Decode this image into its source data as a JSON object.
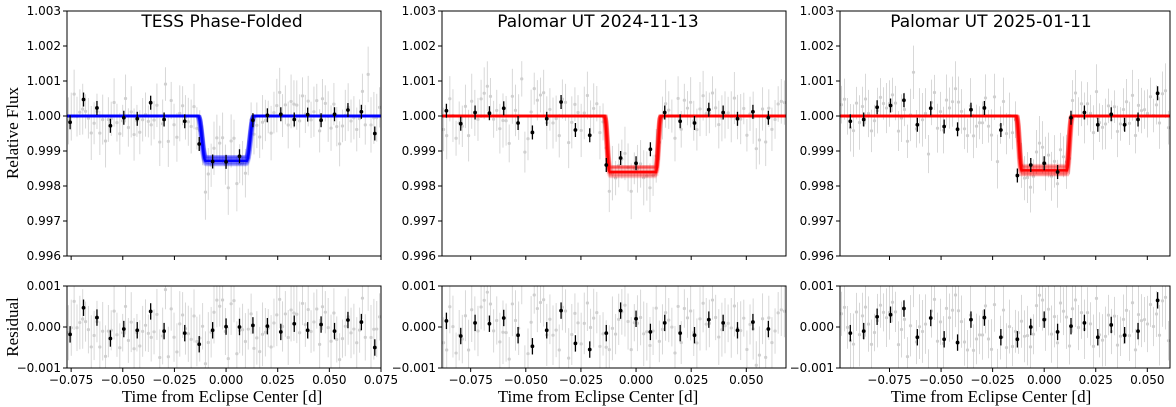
{
  "figure": {
    "ylabel_flux": "Relative Flux",
    "ylabel_residual": "Residual",
    "xlabel": "Time from Eclipse Center [d]"
  },
  "chart_data": [
    {
      "type": "scatter",
      "title": "TESS Phase-Folded",
      "xlim": [
        -0.077,
        0.075
      ],
      "xticks": [
        -0.075,
        -0.05,
        -0.025,
        0.0,
        0.025,
        0.05,
        0.075
      ],
      "xticklabels": [
        "−0.075",
        "−0.050",
        "−0.025",
        "0.000",
        "0.025",
        "0.050",
        "0.075"
      ],
      "flux_ylim": [
        0.996,
        1.003
      ],
      "flux_yticks": [
        0.996,
        0.997,
        0.998,
        0.999,
        1.0,
        1.001,
        1.002,
        1.003
      ],
      "flux_yticklabels": [
        "0.996",
        "0.997",
        "0.998",
        "0.999",
        "1.000",
        "1.001",
        "1.002",
        "1.003"
      ],
      "resid_ylim": [
        -0.001,
        0.001
      ],
      "resid_yticks": [
        -0.001,
        0.0,
        0.001
      ],
      "resid_yticklabels": [
        "−0.001",
        "0.000",
        "0.001"
      ],
      "model_color": "#0000ff",
      "model": {
        "t0": 0.0,
        "half_width": 0.0135,
        "ingress": 0.0035,
        "depth": 0.00128
      },
      "binned": [
        {
          "x": -0.0755,
          "y": 0.99982,
          "err": 0.0002
        },
        {
          "x": -0.069,
          "y": 1.00047,
          "err": 0.0002
        },
        {
          "x": -0.0625,
          "y": 1.00023,
          "err": 0.0002
        },
        {
          "x": -0.056,
          "y": 0.99972,
          "err": 0.0002
        },
        {
          "x": -0.0495,
          "y": 0.99995,
          "err": 0.0002
        },
        {
          "x": -0.043,
          "y": 0.99992,
          "err": 0.0002
        },
        {
          "x": -0.0365,
          "y": 1.00038,
          "err": 0.0002
        },
        {
          "x": -0.03,
          "y": 0.9999,
          "err": 0.0002
        },
        {
          "x": -0.02,
          "y": 0.99985,
          "err": 0.0002
        },
        {
          "x": -0.013,
          "y": 0.9992,
          "err": 0.0002
        },
        {
          "x": -0.0065,
          "y": 0.9987,
          "err": 0.0002
        },
        {
          "x": 0.0,
          "y": 0.99869,
          "err": 0.0002
        },
        {
          "x": 0.0065,
          "y": 0.99885,
          "err": 0.0002
        },
        {
          "x": 0.013,
          "y": 0.99988,
          "err": 0.0002
        },
        {
          "x": 0.02,
          "y": 1.00002,
          "err": 0.0002
        },
        {
          "x": 0.0265,
          "y": 1.00005,
          "err": 0.0002
        },
        {
          "x": 0.033,
          "y": 0.9999,
          "err": 0.0002
        },
        {
          "x": 0.0395,
          "y": 1.00004,
          "err": 0.0002
        },
        {
          "x": 0.046,
          "y": 0.99988,
          "err": 0.0002
        },
        {
          "x": 0.0525,
          "y": 1.00005,
          "err": 0.0002
        },
        {
          "x": 0.059,
          "y": 1.00017,
          "err": 0.0002
        },
        {
          "x": 0.0655,
          "y": 1.00012,
          "err": 0.0002
        },
        {
          "x": 0.072,
          "y": 0.9995,
          "err": 0.0002
        }
      ],
      "residuals": [
        {
          "x": -0.0755,
          "y": -0.00018,
          "err": 0.0002
        },
        {
          "x": -0.069,
          "y": 0.00047,
          "err": 0.0002
        },
        {
          "x": -0.0625,
          "y": 0.00023,
          "err": 0.0002
        },
        {
          "x": -0.056,
          "y": -0.00028,
          "err": 0.0002
        },
        {
          "x": -0.0495,
          "y": -5e-05,
          "err": 0.0002
        },
        {
          "x": -0.043,
          "y": -8e-05,
          "err": 0.0002
        },
        {
          "x": -0.0365,
          "y": 0.00038,
          "err": 0.0002
        },
        {
          "x": -0.03,
          "y": -0.0001,
          "err": 0.0002
        },
        {
          "x": -0.02,
          "y": -0.00015,
          "err": 0.0002
        },
        {
          "x": -0.013,
          "y": -0.00042,
          "err": 0.0002
        },
        {
          "x": -0.0065,
          "y": -8e-05,
          "err": 0.0002
        },
        {
          "x": 0.0,
          "y": 1e-05,
          "err": 0.0002
        },
        {
          "x": 0.0065,
          "y": 0.0,
          "err": 0.0002
        },
        {
          "x": 0.013,
          "y": 4e-05,
          "err": 0.0002
        },
        {
          "x": 0.02,
          "y": 2e-05,
          "err": 0.0002
        },
        {
          "x": 0.0265,
          "y": -0.00012,
          "err": 0.0002
        },
        {
          "x": 0.033,
          "y": 8e-05,
          "err": 0.0002
        },
        {
          "x": 0.0395,
          "y": -8e-05,
          "err": 0.0002
        },
        {
          "x": 0.046,
          "y": 6e-05,
          "err": 0.0002
        },
        {
          "x": 0.0525,
          "y": -0.0001,
          "err": 0.0002
        },
        {
          "x": 0.059,
          "y": 0.00017,
          "err": 0.0002
        },
        {
          "x": 0.0655,
          "y": 0.00012,
          "err": 0.0002
        },
        {
          "x": 0.072,
          "y": -0.0005,
          "err": 0.0002
        }
      ]
    },
    {
      "type": "scatter",
      "title": "Palomar UT 2024-11-13",
      "xlim": [
        -0.088,
        0.068
      ],
      "xticks": [
        -0.075,
        -0.05,
        -0.025,
        0.0,
        0.025,
        0.05
      ],
      "xticklabels": [
        "−0.075",
        "−0.050",
        "−0.025",
        "0.000",
        "0.025",
        "0.050"
      ],
      "flux_ylim": [
        0.996,
        1.003
      ],
      "flux_yticks": [
        0.996,
        0.997,
        0.998,
        0.999,
        1.0,
        1.001,
        1.002,
        1.003
      ],
      "flux_yticklabels": [
        "0.996",
        "0.997",
        "0.998",
        "0.999",
        "1.000",
        "1.001",
        "1.002",
        "1.003"
      ],
      "resid_ylim": [
        -0.001,
        0.001
      ],
      "resid_yticks": [
        -0.001,
        0.0,
        0.001
      ],
      "resid_yticklabels": [
        "−0.001",
        "0.000",
        "0.001"
      ],
      "model_color": "#ff0000",
      "model": {
        "t0": -0.0015,
        "half_width": 0.0128,
        "ingress": 0.0022,
        "depth": 0.0016
      },
      "binned": [
        {
          "x": -0.086,
          "y": 1.00015,
          "err": 0.0002
        },
        {
          "x": -0.0795,
          "y": 0.99978,
          "err": 0.0002
        },
        {
          "x": -0.073,
          "y": 1.0001,
          "err": 0.0002
        },
        {
          "x": -0.0665,
          "y": 1.00008,
          "err": 0.0002
        },
        {
          "x": -0.06,
          "y": 1.00022,
          "err": 0.0002
        },
        {
          "x": -0.0535,
          "y": 0.9998,
          "err": 0.0002
        },
        {
          "x": -0.047,
          "y": 0.99953,
          "err": 0.0002
        },
        {
          "x": -0.0405,
          "y": 0.99992,
          "err": 0.0002
        },
        {
          "x": -0.034,
          "y": 1.0004,
          "err": 0.0002
        },
        {
          "x": -0.0275,
          "y": 0.9996,
          "err": 0.0002
        },
        {
          "x": -0.021,
          "y": 0.99945,
          "err": 0.0002
        },
        {
          "x": -0.0135,
          "y": 0.9986,
          "err": 0.0002
        },
        {
          "x": -0.007,
          "y": 0.9988,
          "err": 0.0002
        },
        {
          "x": 0.0,
          "y": 0.99865,
          "err": 0.0002
        },
        {
          "x": 0.0065,
          "y": 0.99905,
          "err": 0.0002
        },
        {
          "x": 0.013,
          "y": 1.0001,
          "err": 0.0002
        },
        {
          "x": 0.02,
          "y": 0.99985,
          "err": 0.0002
        },
        {
          "x": 0.0265,
          "y": 0.9998,
          "err": 0.0002
        },
        {
          "x": 0.033,
          "y": 1.00018,
          "err": 0.0002
        },
        {
          "x": 0.0395,
          "y": 1.0001,
          "err": 0.0002
        },
        {
          "x": 0.046,
          "y": 0.99992,
          "err": 0.0002
        },
        {
          "x": 0.053,
          "y": 1.00012,
          "err": 0.0002
        },
        {
          "x": 0.06,
          "y": 0.99995,
          "err": 0.0002
        }
      ],
      "residuals": [
        {
          "x": -0.086,
          "y": 0.00015,
          "err": 0.0002
        },
        {
          "x": -0.0795,
          "y": -0.00022,
          "err": 0.0002
        },
        {
          "x": -0.073,
          "y": 0.0001,
          "err": 0.0002
        },
        {
          "x": -0.0665,
          "y": 8e-05,
          "err": 0.0002
        },
        {
          "x": -0.06,
          "y": 0.00022,
          "err": 0.0002
        },
        {
          "x": -0.0535,
          "y": -0.0002,
          "err": 0.0002
        },
        {
          "x": -0.047,
          "y": -0.00047,
          "err": 0.0002
        },
        {
          "x": -0.0405,
          "y": -8e-05,
          "err": 0.0002
        },
        {
          "x": -0.034,
          "y": 0.0004,
          "err": 0.0002
        },
        {
          "x": -0.0275,
          "y": -0.0004,
          "err": 0.0002
        },
        {
          "x": -0.021,
          "y": -0.00055,
          "err": 0.0002
        },
        {
          "x": -0.0135,
          "y": -0.00015,
          "err": 0.0002
        },
        {
          "x": -0.007,
          "y": 0.0004,
          "err": 0.0002
        },
        {
          "x": 0.0,
          "y": 0.0002,
          "err": 0.0002
        },
        {
          "x": 0.0065,
          "y": -0.00012,
          "err": 0.0002
        },
        {
          "x": 0.013,
          "y": 0.0001,
          "err": 0.0002
        },
        {
          "x": 0.02,
          "y": -0.00015,
          "err": 0.0002
        },
        {
          "x": 0.0265,
          "y": -0.0002,
          "err": 0.0002
        },
        {
          "x": 0.033,
          "y": 0.00018,
          "err": 0.0002
        },
        {
          "x": 0.0395,
          "y": 0.0001,
          "err": 0.0002
        },
        {
          "x": 0.046,
          "y": -8e-05,
          "err": 0.0002
        },
        {
          "x": 0.053,
          "y": 0.00012,
          "err": 0.0002
        },
        {
          "x": 0.06,
          "y": -5e-05,
          "err": 0.0002
        }
      ]
    },
    {
      "type": "scatter",
      "title": "Palomar UT 2025-01-11",
      "xlim": [
        -0.099,
        0.061
      ],
      "xticks": [
        -0.075,
        -0.05,
        -0.025,
        0.0,
        0.025,
        0.05
      ],
      "xticklabels": [
        "−0.075",
        "−0.050",
        "−0.025",
        "0.000",
        "0.025",
        "0.050"
      ],
      "flux_ylim": [
        0.996,
        1.003
      ],
      "flux_yticks": [
        0.996,
        0.997,
        0.998,
        0.999,
        1.0,
        1.001,
        1.002,
        1.003
      ],
      "flux_yticklabels": [
        "0.996",
        "0.997",
        "0.998",
        "0.999",
        "1.000",
        "1.001",
        "1.002",
        "1.003"
      ],
      "resid_ylim": [
        -0.001,
        0.001
      ],
      "resid_yticks": [
        -0.001,
        0.0,
        0.001
      ],
      "resid_yticklabels": [
        "−0.001",
        "0.000",
        "0.001"
      ],
      "model_color": "#ff0000",
      "model": {
        "t0": 0.0,
        "half_width": 0.0135,
        "ingress": 0.0025,
        "depth": 0.00155
      },
      "binned": [
        {
          "x": -0.094,
          "y": 0.99985,
          "err": 0.0002
        },
        {
          "x": -0.0875,
          "y": 0.9999,
          "err": 0.0002
        },
        {
          "x": -0.081,
          "y": 1.00025,
          "err": 0.0002
        },
        {
          "x": -0.0745,
          "y": 1.0003,
          "err": 0.0002
        },
        {
          "x": -0.068,
          "y": 1.00045,
          "err": 0.0002
        },
        {
          "x": -0.0615,
          "y": 0.99975,
          "err": 0.0002
        },
        {
          "x": -0.055,
          "y": 1.00022,
          "err": 0.0002
        },
        {
          "x": -0.0485,
          "y": 0.9997,
          "err": 0.0002
        },
        {
          "x": -0.042,
          "y": 0.99962,
          "err": 0.0002
        },
        {
          "x": -0.0355,
          "y": 1.00018,
          "err": 0.0002
        },
        {
          "x": -0.029,
          "y": 1.00023,
          "err": 0.0002
        },
        {
          "x": -0.021,
          "y": 0.9996,
          "err": 0.0002
        },
        {
          "x": -0.013,
          "y": 0.9983,
          "err": 0.0002
        },
        {
          "x": -0.0065,
          "y": 0.9986,
          "err": 0.0002
        },
        {
          "x": 0.0,
          "y": 0.99865,
          "err": 0.0002
        },
        {
          "x": 0.0065,
          "y": 0.9984,
          "err": 0.0002
        },
        {
          "x": 0.013,
          "y": 0.99995,
          "err": 0.0002
        },
        {
          "x": 0.0195,
          "y": 1.0001,
          "err": 0.0002
        },
        {
          "x": 0.026,
          "y": 0.99975,
          "err": 0.0002
        },
        {
          "x": 0.0325,
          "y": 1.00005,
          "err": 0.0002
        },
        {
          "x": 0.039,
          "y": 0.99975,
          "err": 0.0002
        },
        {
          "x": 0.0455,
          "y": 0.9999,
          "err": 0.0002
        },
        {
          "x": 0.055,
          "y": 1.00065,
          "err": 0.0002
        }
      ],
      "residuals": [
        {
          "x": -0.094,
          "y": -0.00015,
          "err": 0.0002
        },
        {
          "x": -0.0875,
          "y": -0.0001,
          "err": 0.0002
        },
        {
          "x": -0.081,
          "y": 0.00025,
          "err": 0.0002
        },
        {
          "x": -0.0745,
          "y": 0.0003,
          "err": 0.0002
        },
        {
          "x": -0.068,
          "y": 0.00045,
          "err": 0.0002
        },
        {
          "x": -0.0615,
          "y": -0.00025,
          "err": 0.0002
        },
        {
          "x": -0.055,
          "y": 0.00022,
          "err": 0.0002
        },
        {
          "x": -0.0485,
          "y": -0.0003,
          "err": 0.0002
        },
        {
          "x": -0.042,
          "y": -0.00038,
          "err": 0.0002
        },
        {
          "x": -0.0355,
          "y": 0.00018,
          "err": 0.0002
        },
        {
          "x": -0.029,
          "y": 0.00023,
          "err": 0.0002
        },
        {
          "x": -0.021,
          "y": -0.00025,
          "err": 0.0002
        },
        {
          "x": -0.013,
          "y": -0.0003,
          "err": 0.0002
        },
        {
          "x": -0.0065,
          "y": 0.0,
          "err": 0.0002
        },
        {
          "x": 0.0,
          "y": 0.00018,
          "err": 0.0002
        },
        {
          "x": 0.0065,
          "y": -0.00012,
          "err": 0.0002
        },
        {
          "x": 0.013,
          "y": 2e-05,
          "err": 0.0002
        },
        {
          "x": 0.0195,
          "y": 0.0001,
          "err": 0.0002
        },
        {
          "x": 0.026,
          "y": -0.00025,
          "err": 0.0002
        },
        {
          "x": 0.0325,
          "y": 5e-05,
          "err": 0.0002
        },
        {
          "x": 0.039,
          "y": -0.0002,
          "err": 0.0002
        },
        {
          "x": 0.0455,
          "y": -0.0001,
          "err": 0.0002
        },
        {
          "x": 0.055,
          "y": 0.00065,
          "err": 0.0002
        }
      ]
    }
  ]
}
